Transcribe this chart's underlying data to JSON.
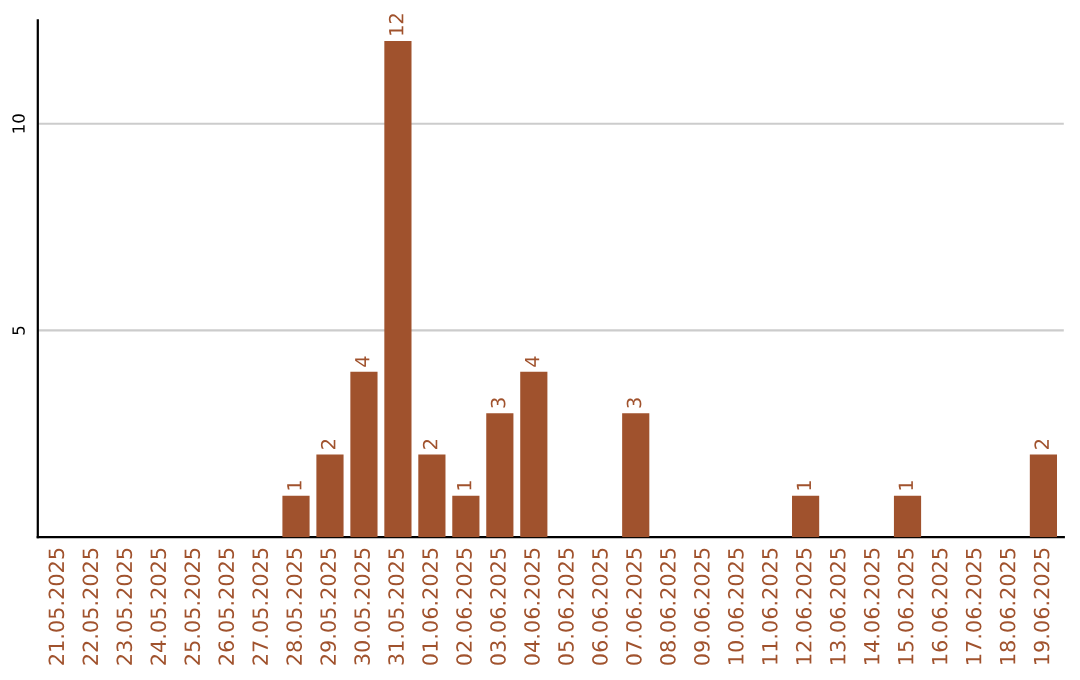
{
  "chart_data": {
    "type": "bar",
    "categories": [
      "21.05.2025",
      "22.05.2025",
      "23.05.2025",
      "24.05.2025",
      "25.05.2025",
      "26.05.2025",
      "27.05.2025",
      "28.05.2025",
      "29.05.2025",
      "30.05.2025",
      "31.05.2025",
      "01.06.2025",
      "02.06.2025",
      "03.06.2025",
      "04.06.2025",
      "05.06.2025",
      "06.06.2025",
      "07.06.2025",
      "08.06.2025",
      "09.06.2025",
      "10.06.2025",
      "11.06.2025",
      "12.06.2025",
      "13.06.2025",
      "14.06.2025",
      "15.06.2025",
      "16.06.2025",
      "17.06.2025",
      "18.06.2025",
      "19.06.2025"
    ],
    "values": [
      0,
      0,
      0,
      0,
      0,
      0,
      0,
      1,
      2,
      4,
      12,
      2,
      1,
      3,
      4,
      0,
      0,
      3,
      0,
      0,
      0,
      0,
      1,
      0,
      0,
      1,
      0,
      0,
      0,
      2
    ],
    "value_labels": [
      null,
      null,
      null,
      null,
      null,
      null,
      null,
      "1",
      "2",
      "4",
      "12",
      "2",
      "1",
      "3",
      "4",
      null,
      null,
      "3",
      null,
      null,
      null,
      null,
      "1",
      null,
      null,
      "1",
      null,
      null,
      null,
      "2"
    ],
    "color": "#a0522d",
    "ylim": [
      0,
      12.5
    ],
    "yticks": [
      5,
      10
    ],
    "grid": "y"
  }
}
